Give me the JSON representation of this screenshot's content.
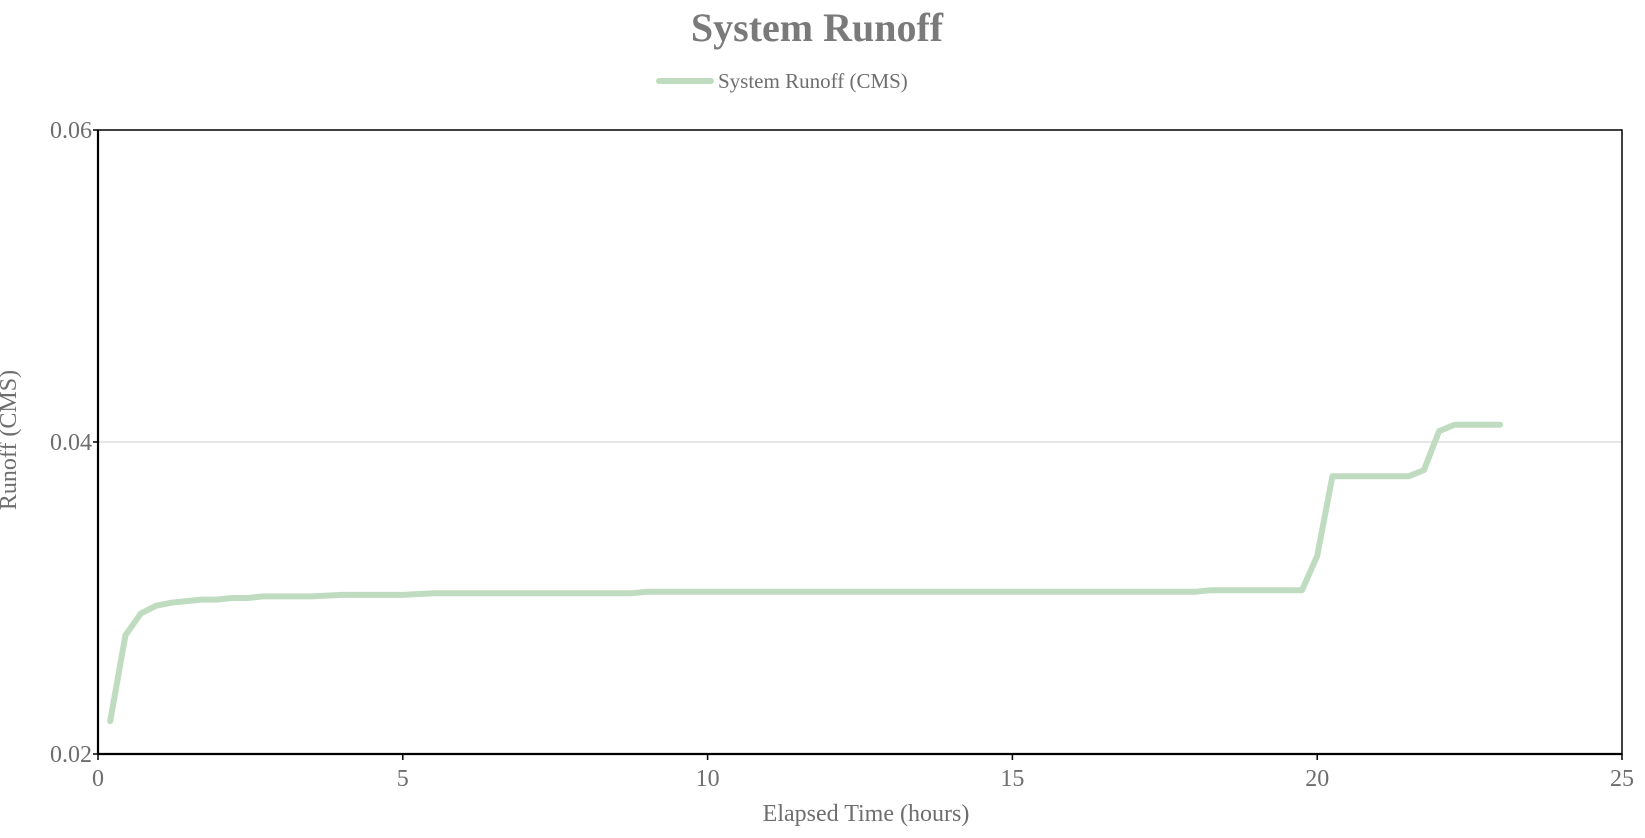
{
  "chart_data": {
    "type": "line",
    "title": "System Runoff",
    "xlabel": "Elapsed Time (hours)",
    "ylabel": "Runoff (CMS)",
    "xlim": [
      0,
      25
    ],
    "ylim": [
      0.02,
      0.06
    ],
    "xticks": [
      0,
      5,
      10,
      15,
      20,
      25
    ],
    "xtick_labels": [
      "0",
      "5",
      "10",
      "15",
      "20",
      "25"
    ],
    "yticks": [
      0.02,
      0.04,
      0.06
    ],
    "ytick_labels": [
      "0.02",
      "0.04",
      "0.06"
    ],
    "grid": "horizontal",
    "legend_position": "top-center",
    "series": [
      {
        "name": "System Runoff (CMS)",
        "color": "#c0dcc0",
        "x": [
          0.2,
          0.45,
          0.7,
          0.95,
          1.2,
          1.45,
          1.7,
          1.95,
          2.2,
          2.45,
          2.7,
          3.0,
          3.5,
          4.0,
          5.0,
          5.5,
          7.0,
          8.75,
          9.0,
          12.0,
          15.0,
          18.0,
          18.25,
          19.0,
          19.75,
          20.0,
          20.25,
          20.75,
          21.25,
          21.5,
          21.75,
          22.0,
          22.25,
          22.5,
          23.0
        ],
        "values": [
          0.0221,
          0.0276,
          0.029,
          0.0295,
          0.0297,
          0.0298,
          0.0299,
          0.0299,
          0.03,
          0.03,
          0.0301,
          0.0301,
          0.0301,
          0.0302,
          0.0302,
          0.0303,
          0.0303,
          0.0303,
          0.0304,
          0.0304,
          0.0304,
          0.0304,
          0.0305,
          0.0305,
          0.0305,
          0.0327,
          0.0378,
          0.0378,
          0.0378,
          0.0378,
          0.0382,
          0.0407,
          0.0411,
          0.0411,
          0.0411
        ]
      }
    ]
  }
}
